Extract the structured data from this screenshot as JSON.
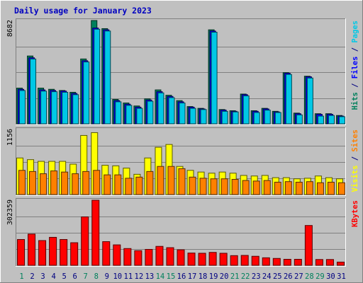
{
  "chart_data": {
    "type": "bar",
    "title": "Daily usage for January 2023",
    "x": [
      "1",
      "2",
      "3",
      "4",
      "5",
      "6",
      "7",
      "8",
      "9",
      "10",
      "11",
      "12",
      "13",
      "14",
      "15",
      "16",
      "17",
      "18",
      "19",
      "20",
      "21",
      "22",
      "23",
      "24",
      "25",
      "26",
      "27",
      "28",
      "29",
      "30",
      "31"
    ],
    "weekend_days": [
      "1",
      "7",
      "8",
      "14",
      "15",
      "21",
      "22",
      "28",
      "29"
    ],
    "panels": [
      {
        "id": "hits",
        "ymax_label": "8682",
        "ylim": [
          0,
          8682
        ],
        "grid": true,
        "axis_labels": [
          {
            "text": "Hits",
            "color": "#00805c"
          },
          {
            "text": " / ",
            "color": "#000080"
          },
          {
            "text": "Files",
            "color": "#0000ff"
          },
          {
            "text": " / ",
            "color": "#000080"
          },
          {
            "text": "Pages",
            "color": "#00c8e6"
          }
        ],
        "series": [
          {
            "name": "Hits",
            "color": "#00805c",
            "values": [
              3000,
              5700,
              3000,
              2900,
              2800,
              2650,
              5450,
              8682,
              8000,
              2050,
              1750,
              1500,
              2100,
              2850,
              2400,
              1950,
              1450,
              1300,
              7900,
              1200,
              1100,
              2500,
              1100,
              1300,
              1050,
              4300,
              900,
              4000,
              850,
              850,
              700
            ]
          },
          {
            "name": "Files",
            "color": "#0000ff",
            "values": [
              2900,
              5550,
              2850,
              2800,
              2750,
              2550,
              5300,
              8050,
              7900,
              1950,
              1650,
              1400,
              2000,
              2700,
              2300,
              1850,
              1400,
              1250,
              7800,
              1150,
              1050,
              2450,
              1050,
              1250,
              1000,
              4250,
              850,
              3950,
              800,
              800,
              650
            ]
          },
          {
            "name": "Pages",
            "color": "#00c8e6",
            "values": [
              2800,
              5450,
              2750,
              2700,
              2650,
              2450,
              5200,
              7950,
              7800,
              1850,
              1550,
              1300,
              1900,
              2600,
              2200,
              1750,
              1300,
              1200,
              7700,
              1050,
              1000,
              2350,
              950,
              1150,
              950,
              4150,
              750,
              3850,
              650,
              700,
              600
            ]
          }
        ]
      },
      {
        "id": "visits",
        "ymax_label": "1156",
        "ylim": [
          0,
          1156
        ],
        "grid": true,
        "axis_labels": [
          {
            "text": "Visits",
            "color": "#ffff00"
          },
          {
            "text": " / ",
            "color": "#000080"
          },
          {
            "text": "Sites",
            "color": "#ff8000"
          }
        ],
        "series": [
          {
            "name": "Visits",
            "color": "#ffff00",
            "values": [
              650,
              620,
              590,
              590,
              590,
              540,
              1050,
              1100,
              520,
              510,
              470,
              360,
              650,
              840,
              890,
              500,
              430,
              400,
              380,
              400,
              380,
              340,
              330,
              340,
              300,
              300,
              280,
              290,
              330,
              300,
              280
            ]
          },
          {
            "name": "Sites",
            "color": "#ff8000",
            "values": [
              430,
              410,
              370,
              420,
              400,
              370,
              410,
              430,
              350,
              350,
              290,
              310,
              410,
              500,
              500,
              460,
              310,
              290,
              280,
              280,
              270,
              250,
              240,
              250,
              220,
              230,
              220,
              230,
              210,
              220,
              210
            ]
          }
        ]
      },
      {
        "id": "kbytes",
        "ymax_label": "302359",
        "ylim": [
          0,
          302359
        ],
        "grid": true,
        "axis_labels": [
          {
            "text": "KBytes",
            "color": "#ff0000"
          }
        ],
        "series": [
          {
            "name": "KBytes",
            "color": "#ff0000",
            "values": [
              120000,
              145000,
              115000,
              130000,
              120000,
              105000,
              225000,
              302359,
              110000,
              95000,
              78000,
              68000,
              74000,
              88000,
              82000,
              72000,
              57000,
              56000,
              60000,
              56000,
              45000,
              46000,
              42000,
              35000,
              32000,
              28000,
              28000,
              185000,
              27000,
              27000,
              15000
            ]
          }
        ]
      }
    ]
  }
}
